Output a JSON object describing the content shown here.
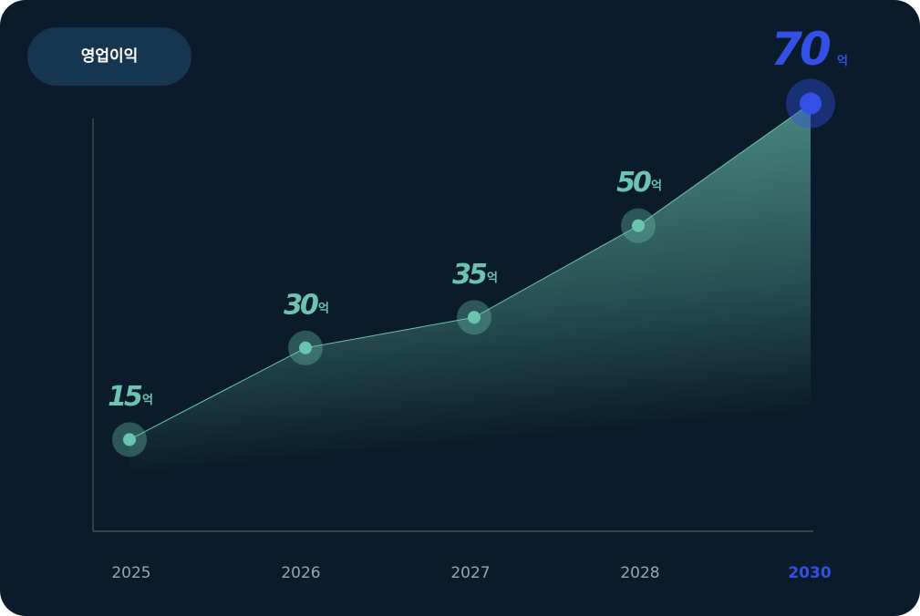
{
  "chart_data": {
    "type": "area",
    "title": "영업이익",
    "categories": [
      "2025",
      "2026",
      "2027",
      "2028",
      "2030"
    ],
    "values": [
      15,
      30,
      35,
      50,
      70
    ],
    "unit": "억",
    "color": "#6cc3b0",
    "highlight_color": "#3350e6",
    "ylim": [
      0,
      75
    ]
  }
}
